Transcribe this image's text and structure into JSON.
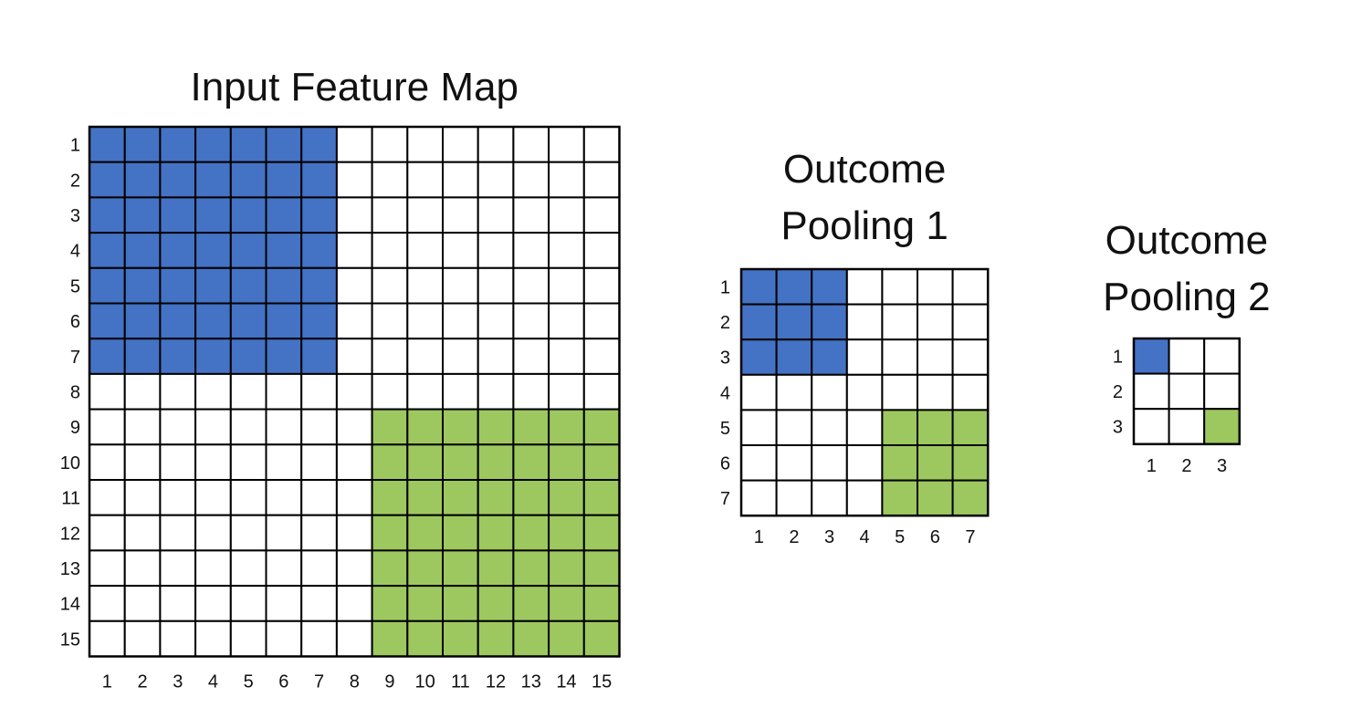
{
  "colors": {
    "blue": "#4472C4",
    "green": "#9DC85F",
    "empty": "#FFFFFF",
    "line": "#000000"
  },
  "grids": [
    {
      "name": "input-feature-map",
      "title_lines": [
        "Input Feature Map"
      ],
      "size": 15,
      "row_labels": [
        "1",
        "2",
        "3",
        "4",
        "5",
        "6",
        "7",
        "8",
        "9",
        "10",
        "11",
        "12",
        "13",
        "14",
        "15"
      ],
      "col_labels": [
        "1",
        "2",
        "3",
        "4",
        "5",
        "6",
        "7",
        "8",
        "9",
        "10",
        "11",
        "12",
        "13",
        "14",
        "15"
      ],
      "regions": [
        {
          "color": "blue",
          "rows": [
            1,
            7
          ],
          "cols": [
            1,
            7
          ]
        },
        {
          "color": "green",
          "rows": [
            9,
            15
          ],
          "cols": [
            9,
            15
          ]
        }
      ]
    },
    {
      "name": "outcome-pooling-1",
      "title_lines": [
        "Outcome",
        "Pooling 1"
      ],
      "size": 7,
      "row_labels": [
        "1",
        "2",
        "3",
        "4",
        "5",
        "6",
        "7"
      ],
      "col_labels": [
        "1",
        "2",
        "3",
        "4",
        "5",
        "6",
        "7"
      ],
      "regions": [
        {
          "color": "blue",
          "rows": [
            1,
            3
          ],
          "cols": [
            1,
            3
          ]
        },
        {
          "color": "green",
          "rows": [
            5,
            7
          ],
          "cols": [
            5,
            7
          ]
        }
      ]
    },
    {
      "name": "outcome-pooling-2",
      "title_lines": [
        "Outcome",
        "Pooling 2"
      ],
      "size": 3,
      "row_labels": [
        "1",
        "2",
        "3"
      ],
      "col_labels": [
        "1",
        "2",
        "3"
      ],
      "regions": [
        {
          "color": "blue",
          "rows": [
            1,
            1
          ],
          "cols": [
            1,
            1
          ]
        },
        {
          "color": "green",
          "rows": [
            3,
            3
          ],
          "cols": [
            3,
            3
          ]
        }
      ]
    }
  ]
}
